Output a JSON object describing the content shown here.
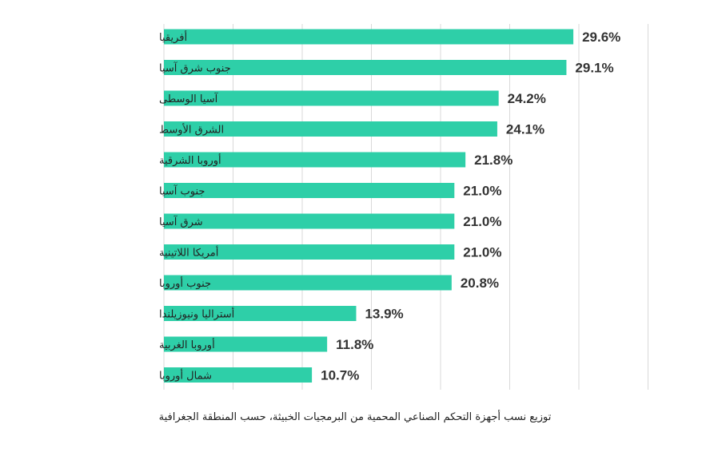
{
  "chart_data": {
    "type": "bar",
    "orientation": "horizontal",
    "categories": [
      "أفريقيا",
      "جنوب شرق آسيا",
      "آسيا الوسطى",
      "الشرق الأوسط",
      "أوروبا الشرقية",
      "جنوب آسيا",
      "شرق آسيا",
      "أمريكا اللاتينية",
      "جنوب أوروبا",
      "أستراليا ونيوزيلندا",
      "أوروبا الغربية",
      "شمال أوروبا"
    ],
    "values": [
      29.6,
      29.1,
      24.2,
      24.1,
      21.8,
      21.0,
      21.0,
      21.0,
      20.8,
      13.9,
      11.8,
      10.7
    ],
    "value_labels": [
      "29.6%",
      "29.1%",
      "24.2%",
      "24.1%",
      "21.8%",
      "21.0%",
      "21.0%",
      "21.0%",
      "20.8%",
      "13.9%",
      "11.8%",
      "10.7%"
    ],
    "xlim": [
      0,
      35
    ],
    "grid": true,
    "bar_color": "#2ecfa8",
    "grid_color": "#d9d9d9",
    "caption": "توزيع نسب أجهزة التحكم الصناعي المحمية من البرمجيات الخبيثة، حسب المنطقة الجغرافية"
  }
}
